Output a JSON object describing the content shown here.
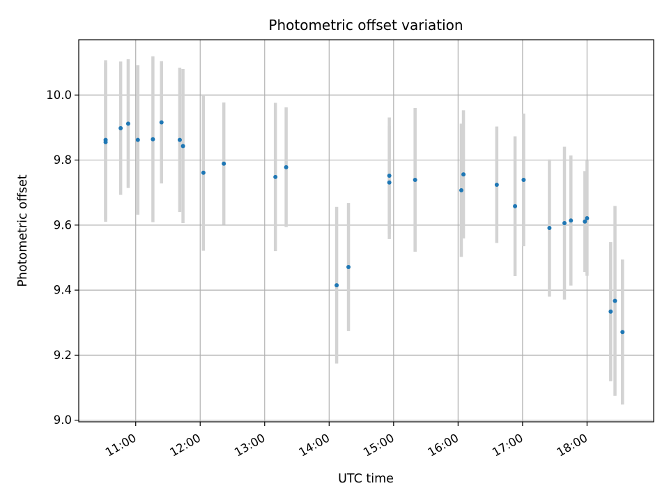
{
  "chart_data": {
    "type": "scatter",
    "title": "Photometric offset variation",
    "xlabel": "UTC time",
    "ylabel": "Photometric offset",
    "x_tick_labels": [
      "11:00",
      "12:00",
      "13:00",
      "14:00",
      "15:00",
      "16:00",
      "17:00",
      "18:00"
    ],
    "x_ticks": [
      "11:00",
      "12:00",
      "13:00",
      "14:00",
      "15:00",
      "16:00",
      "17:00",
      "18:00"
    ],
    "y_ticks": [
      9.0,
      9.2,
      9.4,
      9.6,
      9.8,
      10.0
    ],
    "y_tick_labels": [
      "9.0",
      "9.2",
      "9.4",
      "9.6",
      "9.8",
      "10.0"
    ],
    "xlim": [
      "10:07",
      "19:02"
    ],
    "ylim": [
      8.995,
      10.17
    ],
    "grid": true,
    "marker_color": "#1f77b4",
    "errorbar_color": "#d3d3d3",
    "points": [
      {
        "x": "10:32",
        "y": 9.862,
        "err": 0.245
      },
      {
        "x": "10:32",
        "y": 9.855,
        "err": 0.245
      },
      {
        "x": "10:46",
        "y": 9.898,
        "err": 0.205
      },
      {
        "x": "10:53",
        "y": 9.912,
        "err": 0.198
      },
      {
        "x": "11:02",
        "y": 9.862,
        "err": 0.23
      },
      {
        "x": "11:16",
        "y": 9.864,
        "err": 0.255
      },
      {
        "x": "11:24",
        "y": 9.916,
        "err": 0.188
      },
      {
        "x": "11:41",
        "y": 9.862,
        "err": 0.222
      },
      {
        "x": "11:44",
        "y": 9.843,
        "err": 0.237
      },
      {
        "x": "12:03",
        "y": 9.761,
        "err": 0.24
      },
      {
        "x": "12:22",
        "y": 9.789,
        "err": 0.188
      },
      {
        "x": "13:10",
        "y": 9.748,
        "err": 0.228
      },
      {
        "x": "13:20",
        "y": 9.778,
        "err": 0.184
      },
      {
        "x": "14:07",
        "y": 9.415,
        "err": 0.241
      },
      {
        "x": "14:18",
        "y": 9.471,
        "err": 0.197
      },
      {
        "x": "14:56",
        "y": 9.752,
        "err": 0.179
      },
      {
        "x": "14:56",
        "y": 9.731,
        "err": 0.174
      },
      {
        "x": "15:20",
        "y": 9.739,
        "err": 0.221
      },
      {
        "x": "16:03",
        "y": 9.707,
        "err": 0.205
      },
      {
        "x": "16:05",
        "y": 9.756,
        "err": 0.197
      },
      {
        "x": "16:36",
        "y": 9.724,
        "err": 0.179
      },
      {
        "x": "16:53",
        "y": 9.658,
        "err": 0.215
      },
      {
        "x": "17:01",
        "y": 9.739,
        "err": 0.204
      },
      {
        "x": "17:25",
        "y": 9.591,
        "err": 0.211
      },
      {
        "x": "17:39",
        "y": 9.606,
        "err": 0.235
      },
      {
        "x": "17:45",
        "y": 9.614,
        "err": 0.2
      },
      {
        "x": "17:58",
        "y": 9.611,
        "err": 0.155
      },
      {
        "x": "18:00",
        "y": 9.621,
        "err": 0.177
      },
      {
        "x": "18:22",
        "y": 9.334,
        "err": 0.214
      },
      {
        "x": "18:26",
        "y": 9.367,
        "err": 0.292
      },
      {
        "x": "18:33",
        "y": 9.271,
        "err": 0.223
      }
    ]
  }
}
